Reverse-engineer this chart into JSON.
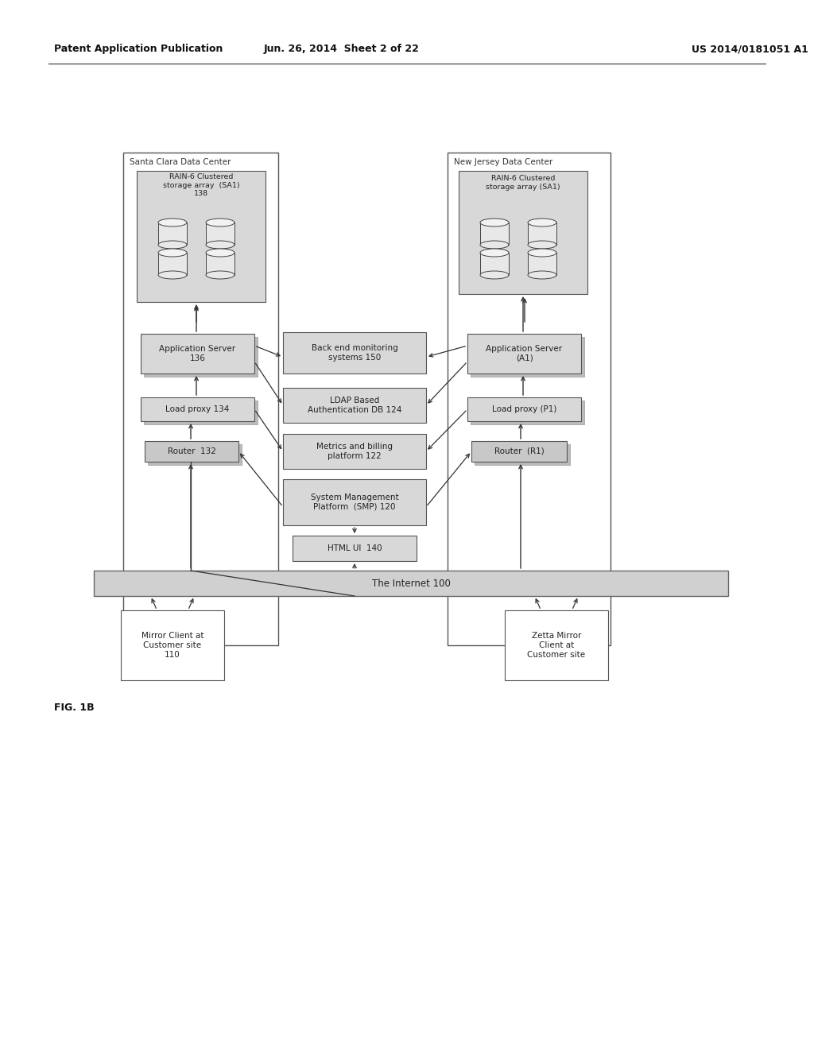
{
  "header_left": "Patent Application Publication",
  "header_mid": "Jun. 26, 2014  Sheet 2 of 22",
  "header_right": "US 2014/0181051 A1",
  "fig_label": "FIG. 1B",
  "bg_color": "#ffffff",
  "left_dc_label": "Santa Clara Data Center",
  "right_dc_label": "New Jersey Data Center",
  "left_storage_label": "RAIN-6 Clustered\nstorage array  (SA1)\n138",
  "right_storage_label": "RAIN-6 Clustered\nstorage array (SA1)",
  "left_appserver_label": "Application Server\n136",
  "right_appserver_label": "Application Server\n(A1)",
  "left_loadproxy_label": "Load proxy 134",
  "right_loadproxy_label": "Load proxy (P1)",
  "left_router_label": "Router  132",
  "right_router_label": "Router  (R1)",
  "backend_label": "Back end monitoring\nsystems 150",
  "ldap_label": "LDAP Based\nAuthentication DB 124",
  "metrics_label": "Metrics and billing\nplatform 122",
  "smp_label": "System Management\nPlatform  (SMP) 120",
  "html_label": "HTML UI  140",
  "internet_label": "The Internet 100",
  "mirror_client_label": "Mirror Client at\nCustomer site\n110",
  "zetta_client_label": "Zetta Mirror\nClient at\nCustomer site"
}
